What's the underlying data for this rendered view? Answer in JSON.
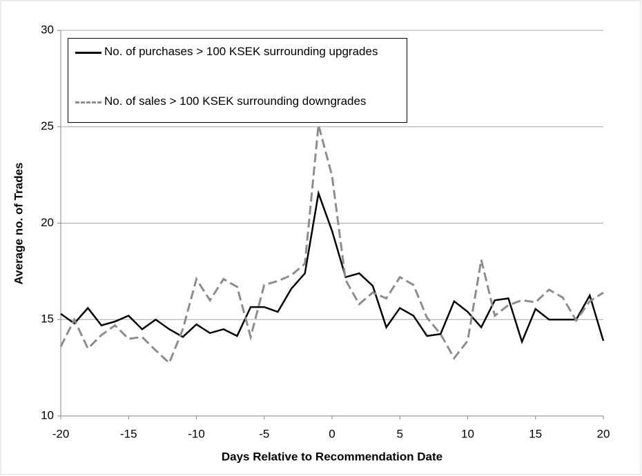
{
  "chart_data": {
    "type": "line",
    "x_label": "Days Relative to Recommendation Date",
    "y_label": "Average no. of Trades",
    "x": [
      -20,
      -19,
      -18,
      -17,
      -16,
      -15,
      -14,
      -13,
      -12,
      -11,
      -10,
      -9,
      -8,
      -7,
      -6,
      -5,
      -4,
      -3,
      -2,
      -1,
      0,
      1,
      2,
      3,
      4,
      5,
      6,
      7,
      8,
      9,
      10,
      11,
      12,
      13,
      14,
      15,
      16,
      17,
      18,
      19,
      20
    ],
    "series": [
      {
        "name": "No. of purchases > 100 KSEK surrounding upgrades",
        "color": "#000000",
        "dashed": false,
        "values": [
          15.3,
          14.8,
          15.6,
          14.7,
          14.9,
          15.2,
          14.5,
          15.0,
          14.5,
          14.1,
          14.75,
          14.3,
          14.5,
          14.15,
          15.65,
          15.65,
          15.4,
          16.6,
          17.4,
          21.55,
          19.6,
          17.2,
          17.4,
          16.75,
          14.6,
          15.6,
          15.2,
          14.15,
          14.25,
          15.95,
          15.4,
          14.6,
          16.0,
          16.1,
          13.85,
          15.55,
          15.0,
          15.0,
          15.0,
          16.25,
          13.9
        ]
      },
      {
        "name": "No. of sales > 100 KSEK surrounding downgrades",
        "color": "#8c8c8c",
        "dashed": true,
        "values": [
          13.6,
          15.0,
          13.5,
          14.2,
          14.7,
          14.0,
          14.1,
          13.4,
          12.75,
          14.5,
          17.1,
          16.0,
          17.1,
          16.7,
          14.1,
          16.8,
          17.0,
          17.3,
          17.9,
          25.1,
          22.45,
          17.05,
          15.8,
          16.4,
          16.1,
          17.2,
          16.8,
          15.1,
          14.25,
          13.0,
          13.9,
          18.1,
          15.2,
          15.75,
          16.0,
          15.9,
          16.55,
          16.15,
          14.95,
          15.95,
          16.4
        ]
      }
    ],
    "xlim": [
      -20,
      20
    ],
    "xticks": [
      -20,
      -15,
      -10,
      -5,
      0,
      5,
      10,
      15,
      20
    ],
    "ylim": [
      10,
      30
    ],
    "yticks": [
      10,
      15,
      20,
      25,
      30
    ],
    "grid": true,
    "legend": "upper left"
  }
}
